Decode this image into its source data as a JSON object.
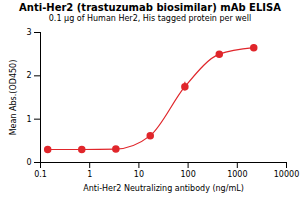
{
  "chart_data": {
    "type": "line",
    "title": "Anti-Her2 (trastuzumab biosimilar) mAb ELISA",
    "subtitle": "0.1 μg of Human Her2, His tagged protein per well",
    "x_label": "Anti-Her2 Neutralizing antibody (ng/mL)",
    "y_label": "Mean Abs.(OD450)",
    "x": [
      0.14,
      0.69,
      3.4,
      17,
      86,
      430,
      2160
    ],
    "values": [
      0.3,
      0.3,
      0.31,
      0.62,
      1.75,
      2.5,
      2.65
    ],
    "errors": [
      0.02,
      0.02,
      0.02,
      0.03,
      0.1,
      0.04,
      0.07
    ],
    "color": "#e0262b",
    "marker": "circle",
    "line_style": "solid",
    "log": "x",
    "xlim": [
      0.1,
      10000
    ],
    "xticks": [
      0.1,
      1,
      10,
      100,
      1000,
      10000
    ],
    "ylim": [
      0,
      3
    ],
    "yticks": [
      0,
      1,
      2,
      3
    ],
    "grid": false
  }
}
